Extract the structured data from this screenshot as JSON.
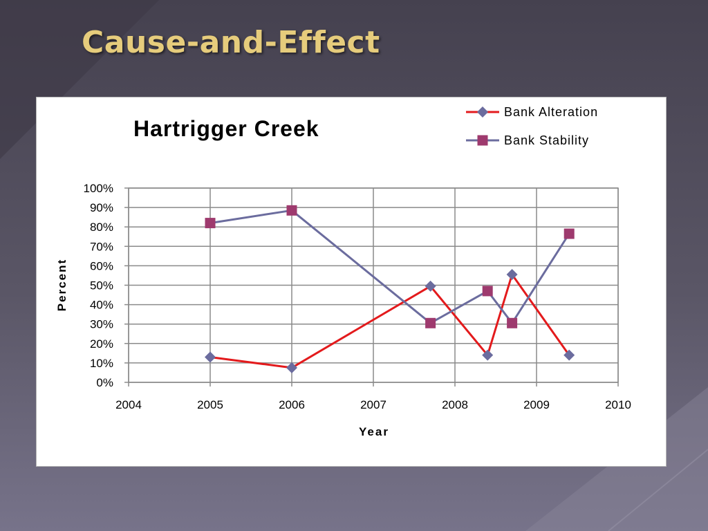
{
  "slide": {
    "title": "Cause-and-Effect"
  },
  "chart_data": {
    "type": "scatter",
    "title": "Hartrigger Creek",
    "xlabel": "Year",
    "ylabel": "Percent",
    "xlim": [
      2004,
      2010
    ],
    "ylim": [
      0,
      100
    ],
    "x_ticks": [
      "2004",
      "2005",
      "2006",
      "2007",
      "2008",
      "2009",
      "2010"
    ],
    "y_ticks": [
      "0%",
      "10%",
      "20%",
      "30%",
      "40%",
      "50%",
      "60%",
      "70%",
      "80%",
      "90%",
      "100%"
    ],
    "grid": true,
    "legend_position": "top-right",
    "series": [
      {
        "name": "Bank Alteration",
        "line_color": "#e31a1c",
        "marker": "diamond",
        "marker_color": "#6b6c9e",
        "points": [
          [
            2005.0,
            13
          ],
          [
            2006.0,
            7.5
          ],
          [
            2007.7,
            49.5
          ],
          [
            2008.4,
            14
          ],
          [
            2008.7,
            55.5
          ],
          [
            2009.4,
            14
          ]
        ]
      },
      {
        "name": "Bank Stability",
        "line_color": "#6b6c9e",
        "marker": "square",
        "marker_color": "#9e3a6e",
        "points": [
          [
            2005.0,
            82
          ],
          [
            2006.0,
            88.5
          ],
          [
            2007.7,
            30.5
          ],
          [
            2008.4,
            47
          ],
          [
            2008.7,
            30.5
          ],
          [
            2009.4,
            76.5
          ]
        ]
      }
    ]
  }
}
